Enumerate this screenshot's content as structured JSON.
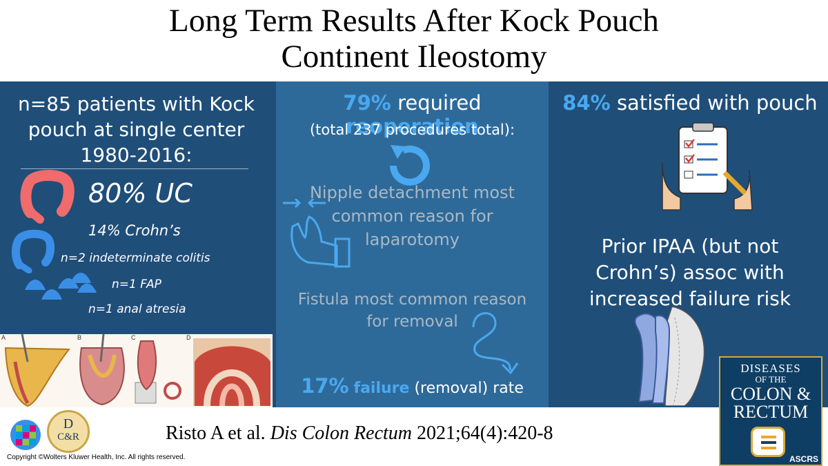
{
  "title": {
    "line1": "Long Term Results After Kock Pouch",
    "line2": "Continent Ileostomy"
  },
  "left_panel": {
    "heading_line1": "n=85 patients with Kock",
    "heading_line2": "pouch at single center",
    "heading_line3": "1980-2016:",
    "uc": "80% UC",
    "crohns": "14% Crohn’s",
    "indeterminate": "n=2 indeterminate colitis",
    "fap": "n=1 FAP",
    "atresia": "n=1 anal atresia",
    "figure_labels": [
      "A",
      "B",
      "C",
      "D"
    ]
  },
  "middle_panel": {
    "reop_pct": "79%",
    "reop_text": "required",
    "reop_word": "reoperation",
    "procedures": "(total 237 procedures total):",
    "nipple_line1": "Nipple detachment most",
    "nipple_line2": "common reason for",
    "nipple_line3": "laparotomy",
    "fistula_line1": "Fistula most common reason",
    "fistula_line2": "for removal",
    "failure_pct": "17%",
    "failure_word": "failure",
    "failure_rest": "(removal) rate"
  },
  "right_panel": {
    "satisfied_pct": "84%",
    "satisfied_text": "satisfied with pouch",
    "ipaa_line1": "Prior IPAA (but not",
    "ipaa_line2": "Crohn’s) assoc with",
    "ipaa_line3": "increased failure risk"
  },
  "citation": {
    "authors": "Risto A et al.",
    "journal": "Dis Colon Rectum",
    "details": "2021;64(4):420-8"
  },
  "copyright": "Copyright ©Wolters Kluwer Health, Inc. All rights reserved.",
  "logo_dcr": {
    "top": "D",
    "bottom": "C&R"
  },
  "journal_cover": {
    "line1": "DISEASES",
    "line2": "OF THE",
    "line3": "COLON &",
    "line4": "RECTUM",
    "publisher": "ASCRS"
  },
  "colors": {
    "dark_panel": "#1f4e79",
    "mid_panel": "#2e6a99",
    "highlight": "#4aa8f0",
    "colon_red": "#f06b6b",
    "colon_blue": "#3a8ee6"
  }
}
